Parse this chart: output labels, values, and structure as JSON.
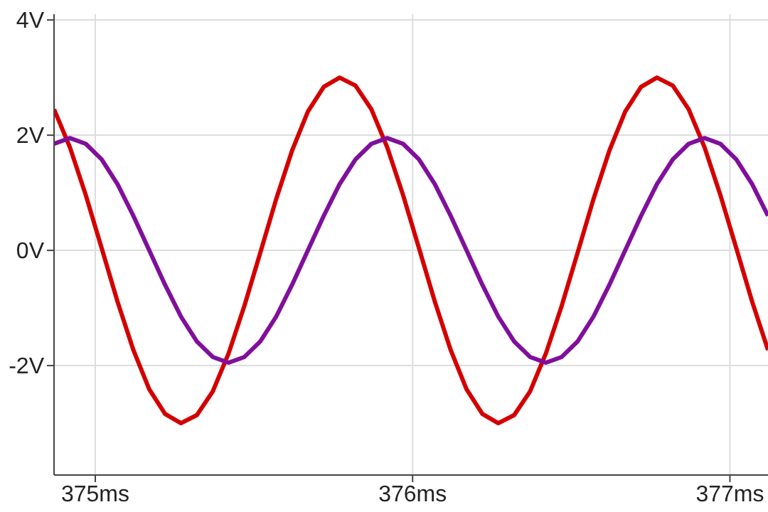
{
  "chart_data": {
    "type": "line",
    "x": [
      374.87,
      374.92,
      374.97,
      375.02,
      375.07,
      375.12,
      375.17,
      375.22,
      375.27,
      375.32,
      375.37,
      375.42,
      375.47,
      375.52,
      375.57,
      375.62,
      375.67,
      375.72,
      375.77,
      375.82,
      375.87,
      375.92,
      375.97,
      376.02,
      376.07,
      376.12,
      376.17,
      376.22,
      376.27,
      376.32,
      376.37,
      376.42,
      376.47,
      376.52,
      376.57,
      376.62,
      376.67,
      376.72,
      376.77,
      376.82,
      376.87,
      376.92,
      376.97,
      377.02,
      377.07,
      377.12
    ],
    "series": [
      {
        "color": "#d40000",
        "values": [
          2.45,
          1.79,
          0.96,
          0.04,
          -0.89,
          -1.73,
          -2.41,
          -2.84,
          -3.0,
          -2.86,
          -2.45,
          -1.79,
          -0.96,
          -0.04,
          0.89,
          1.73,
          2.41,
          2.84,
          3.0,
          2.86,
          2.45,
          1.79,
          0.96,
          0.04,
          -0.89,
          -1.73,
          -2.41,
          -2.84,
          -3.0,
          -2.86,
          -2.45,
          -1.79,
          -0.96,
          -0.04,
          0.89,
          1.73,
          2.41,
          2.84,
          3.0,
          2.86,
          2.45,
          1.79,
          0.96,
          0.04,
          -0.89,
          -1.73
        ]
      },
      {
        "color": "#800f9c",
        "values": [
          1.85,
          1.95,
          1.85,
          1.58,
          1.15,
          0.6,
          0.0,
          -0.6,
          -1.15,
          -1.58,
          -1.85,
          -1.95,
          -1.85,
          -1.58,
          -1.15,
          -0.6,
          0.0,
          0.6,
          1.15,
          1.58,
          1.85,
          1.95,
          1.85,
          1.58,
          1.15,
          0.6,
          0.0,
          -0.6,
          -1.15,
          -1.58,
          -1.85,
          -1.95,
          -1.85,
          -1.58,
          -1.15,
          -0.6,
          0.0,
          0.6,
          1.15,
          1.58,
          1.85,
          1.95,
          1.85,
          1.58,
          1.15,
          0.6
        ]
      }
    ],
    "xlim": [
      374.87,
      377.12
    ],
    "xticks": [
      {
        "value": 375,
        "label": "375ms"
      },
      {
        "value": 376,
        "label": "376ms"
      },
      {
        "value": 377,
        "label": "377ms"
      }
    ],
    "ylim": [
      -3.9,
      4.1
    ],
    "yticks": [
      {
        "value": 4,
        "label": "4V"
      },
      {
        "value": 2,
        "label": "2V"
      },
      {
        "value": 0,
        "label": "0V"
      },
      {
        "value": -2,
        "label": "-2V"
      }
    ],
    "grid": true,
    "marker": "none",
    "line_style": "solid"
  }
}
